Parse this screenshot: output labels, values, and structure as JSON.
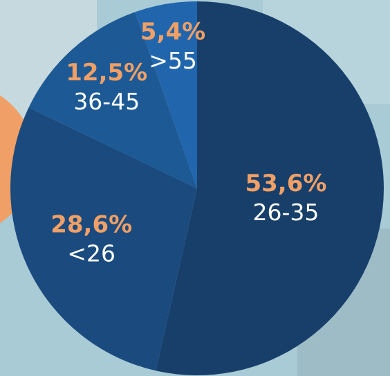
{
  "chart_data": {
    "type": "pie",
    "categories": [
      "26-35",
      "<26",
      "36-45",
      ">55"
    ],
    "values": [
      53.6,
      28.6,
      12.5,
      5.4
    ],
    "value_labels": [
      "53,6%",
      "28,6%",
      "12,5%",
      "5,4%"
    ],
    "colors": [
      "#173f6a",
      "#1a4a7e",
      "#1d5a95",
      "#2166ad"
    ]
  }
}
